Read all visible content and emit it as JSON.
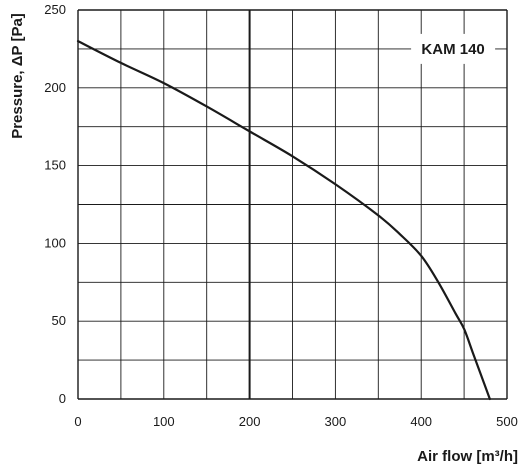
{
  "chart_data": {
    "type": "line",
    "xlabel": "Air flow [m³/h]",
    "ylabel": "Pressure, ΔP [Pa]",
    "xlim": [
      0,
      500
    ],
    "ylim": [
      0,
      250
    ],
    "x_ticks": [
      0,
      100,
      200,
      300,
      400,
      500
    ],
    "y_ticks": [
      0,
      50,
      100,
      150,
      200,
      250
    ],
    "x_tick_labels": [
      "0",
      "100",
      "200",
      "300",
      "400",
      "500"
    ],
    "y_tick_labels": [
      "0",
      "50",
      "100",
      "150",
      "200",
      "250"
    ],
    "x_minor_step": 50,
    "y_minor_step": 25,
    "grid": true,
    "highlight_x": 200,
    "legend": {
      "label": "KAM 140",
      "placement": "top-right"
    },
    "series": [
      {
        "name": "KAM 140",
        "points": [
          [
            0,
            230
          ],
          [
            50,
            216
          ],
          [
            100,
            203
          ],
          [
            150,
            188
          ],
          [
            200,
            172
          ],
          [
            250,
            156
          ],
          [
            300,
            138
          ],
          [
            350,
            118
          ],
          [
            375,
            106
          ],
          [
            400,
            92
          ],
          [
            420,
            75
          ],
          [
            440,
            55
          ],
          [
            450,
            45
          ],
          [
            460,
            30
          ],
          [
            470,
            15
          ],
          [
            480,
            0
          ]
        ]
      }
    ],
    "colors": {
      "curve": "#1a1a1a",
      "grid": "#1a1a1a",
      "text": "#1a1a1a"
    }
  }
}
